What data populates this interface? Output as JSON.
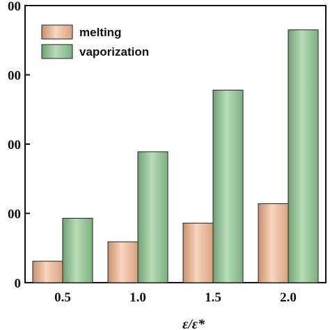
{
  "chart_data": {
    "type": "bar",
    "categories": [
      "0.5",
      "1.0",
      "1.5",
      "2.0"
    ],
    "series": [
      {
        "name": "melting",
        "values": [
          31,
          59,
          86,
          114
        ],
        "color": "#f2c1a0"
      },
      {
        "name": "vaporization",
        "values": [
          93,
          189,
          278,
          365
        ],
        "color": "#9ccc9c"
      }
    ],
    "ylim": [
      0,
      400
    ],
    "yticks": [
      0,
      100,
      200,
      300,
      400
    ],
    "ytick_labels": [
      "0",
      "00",
      "00",
      "00",
      "00"
    ],
    "xlabel": "ε/ε*",
    "legend_position": "top-left",
    "grid": false
  }
}
